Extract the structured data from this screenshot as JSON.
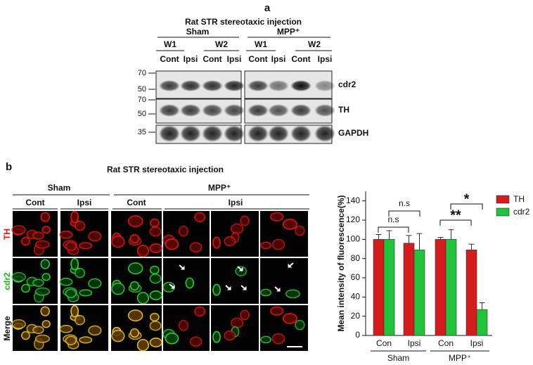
{
  "panel_a": {
    "label": "a",
    "title": "Rat STR stereotaxic injection",
    "groups": [
      "Sham",
      "MPP⁺"
    ],
    "weeks": [
      "W1",
      "W2",
      "W1",
      "W2"
    ],
    "lanes": [
      "Cont",
      "Ipsi",
      "Cont",
      "Ipsi",
      "Cont",
      "Ipsi",
      "Cont",
      "Ipsi"
    ],
    "markers": [
      70,
      50,
      70,
      50,
      35
    ],
    "proteins": [
      "cdr2",
      "TH",
      "GAPDH"
    ]
  },
  "panel_b": {
    "label": "b",
    "title": "Rat STR stereotaxic injection",
    "groups": [
      "Sham",
      "MPP⁺"
    ],
    "columns": [
      "Cont",
      "Ipsi",
      "Cont",
      "Ipsi"
    ],
    "rows": [
      "TH",
      "cdr2",
      "Merge"
    ]
  },
  "chart_data": {
    "type": "bar",
    "ylabel": "Mean intensity of fluorescence(%)",
    "categories": [
      "Con",
      "Ipsi",
      "Con",
      "Ipsi"
    ],
    "groups": [
      "Sham",
      "MPP⁺"
    ],
    "series": [
      {
        "name": "TH",
        "color": "#d41c1c",
        "values": [
          100,
          96,
          100,
          89
        ],
        "errors": [
          5,
          8,
          2,
          6
        ]
      },
      {
        "name": "cdr2",
        "color": "#22c23a",
        "values": [
          100,
          89,
          100,
          27
        ],
        "errors": [
          9,
          17,
          10,
          7
        ]
      }
    ],
    "ylim": [
      0,
      150
    ],
    "yticks": [
      0,
      20,
      40,
      60,
      80,
      100,
      120,
      140
    ],
    "annotations": [
      "n.s",
      "n.s",
      "*",
      "**"
    ],
    "legend": "upper right"
  }
}
